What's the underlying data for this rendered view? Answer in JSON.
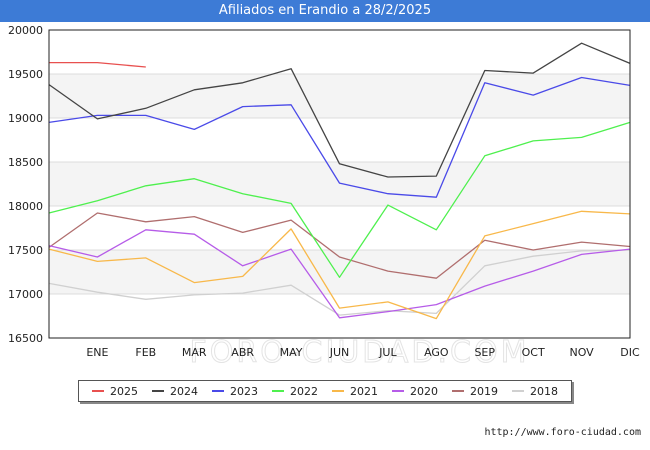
{
  "title": "Afiliados en Erandio a 28/2/2025",
  "watermark": "FORO-CIUDAD.COM",
  "footer_url": "http://www.foro-ciudad.com",
  "chart_data": {
    "type": "line",
    "title": "Afiliados en Erandio a 28/2/2025",
    "xlabel": "",
    "ylabel": "",
    "categories": [
      "",
      "ENE",
      "FEB",
      "MAR",
      "ABR",
      "MAY",
      "JUN",
      "JUL",
      "AGO",
      "SEP",
      "OCT",
      "NOV",
      "DIC"
    ],
    "ylim": [
      16500,
      20000
    ],
    "yticks": [
      16500,
      17000,
      17500,
      18000,
      18500,
      19000,
      19500,
      20000
    ],
    "grid": "horizontal, alternating bands",
    "legend_position": "bottom",
    "series": [
      {
        "name": "2025",
        "color": "#e8504f",
        "values": [
          19630,
          19630,
          19580,
          null,
          null,
          null,
          null,
          null,
          null,
          null,
          null,
          null,
          null
        ]
      },
      {
        "name": "2024",
        "color": "#444444",
        "values": [
          19380,
          18990,
          19110,
          19320,
          19400,
          19560,
          18480,
          18330,
          18340,
          19540,
          19510,
          19850,
          19620
        ]
      },
      {
        "name": "2023",
        "color": "#4a4ae8",
        "values": [
          18950,
          19030,
          19030,
          18870,
          19130,
          19150,
          18260,
          18140,
          18100,
          19400,
          19260,
          19460,
          19370
        ]
      },
      {
        "name": "2022",
        "color": "#4ef04e",
        "values": [
          17920,
          18060,
          18230,
          18310,
          18140,
          18030,
          17190,
          18010,
          17730,
          18570,
          18740,
          18780,
          18950
        ]
      },
      {
        "name": "2021",
        "color": "#f8b84a",
        "values": [
          17510,
          17370,
          17410,
          17130,
          17200,
          17740,
          16840,
          16910,
          16720,
          17660,
          17800,
          17940,
          17910
        ]
      },
      {
        "name": "2020",
        "color": "#b65ce8",
        "values": [
          17550,
          17420,
          17730,
          17680,
          17320,
          17510,
          16730,
          16800,
          16880,
          17090,
          17260,
          17450,
          17510
        ]
      },
      {
        "name": "2019",
        "color": "#b06e6e",
        "values": [
          17530,
          17920,
          17820,
          17880,
          17700,
          17840,
          17420,
          17260,
          17180,
          17610,
          17500,
          17590,
          17540
        ]
      },
      {
        "name": "2018",
        "color": "#d0d0d0",
        "values": [
          17120,
          17020,
          16940,
          16990,
          17010,
          17100,
          16760,
          16810,
          16780,
          17320,
          17430,
          17490,
          17500
        ]
      }
    ]
  }
}
